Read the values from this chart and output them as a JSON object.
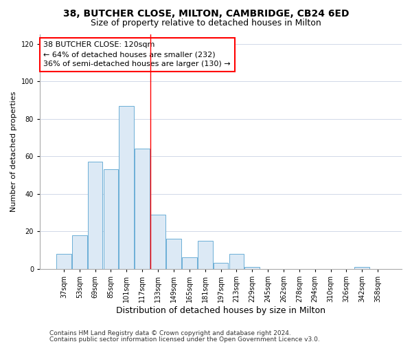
{
  "title": "38, BUTCHER CLOSE, MILTON, CAMBRIDGE, CB24 6ED",
  "subtitle": "Size of property relative to detached houses in Milton",
  "xlabel": "Distribution of detached houses by size in Milton",
  "ylabel": "Number of detached properties",
  "categories": [
    "37sqm",
    "53sqm",
    "69sqm",
    "85sqm",
    "101sqm",
    "117sqm",
    "133sqm",
    "149sqm",
    "165sqm",
    "181sqm",
    "197sqm",
    "213sqm",
    "229sqm",
    "245sqm",
    "262sqm",
    "278sqm",
    "294sqm",
    "310sqm",
    "326sqm",
    "342sqm",
    "358sqm"
  ],
  "values": [
    8,
    18,
    57,
    53,
    87,
    64,
    29,
    16,
    6,
    15,
    3,
    8,
    1,
    0,
    0,
    0,
    0,
    0,
    0,
    1,
    0
  ],
  "bar_color": "#dce9f5",
  "bar_edge_color": "#6baed6",
  "background_color": "#ffffff",
  "grid_color": "#d0d8e8",
  "ylim": [
    0,
    125
  ],
  "yticks": [
    0,
    20,
    40,
    60,
    80,
    100,
    120
  ],
  "red_line_x": 5.5,
  "annotation_title": "38 BUTCHER CLOSE: 120sqm",
  "annotation_line1": "← 64% of detached houses are smaller (232)",
  "annotation_line2": "36% of semi-detached houses are larger (130) →",
  "footnote1": "Contains HM Land Registry data © Crown copyright and database right 2024.",
  "footnote2": "Contains public sector information licensed under the Open Government Licence v3.0.",
  "title_fontsize": 10,
  "subtitle_fontsize": 9,
  "xlabel_fontsize": 9,
  "ylabel_fontsize": 8,
  "tick_fontsize": 7,
  "annotation_fontsize": 8,
  "footnote_fontsize": 6.5
}
